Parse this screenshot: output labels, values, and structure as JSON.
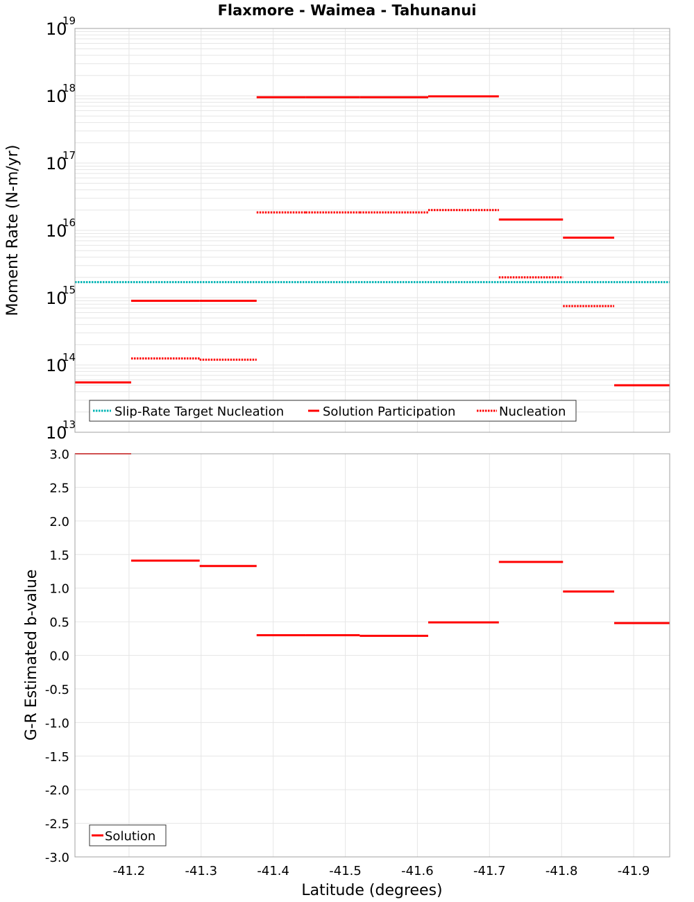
{
  "title": "Flaxmore - Waimea - Tahunanui",
  "colors": {
    "solution": "#ff0000",
    "target": "#00b4b4",
    "grid": "#e6e6e6",
    "frame": "#a0a0a0"
  },
  "chart_data": [
    {
      "type": "line",
      "name": "moment-rate",
      "ylabel": "Moment Rate (N-m/yr)",
      "yscale": "log",
      "ylim_exp": [
        13,
        19
      ],
      "y_tick_exponents": [
        13,
        14,
        15,
        16,
        17,
        18,
        19
      ],
      "y_tick_base": "10",
      "legend": {
        "placement": "bottom-left",
        "entries": [
          {
            "label": "Slip-Rate Target Nucleation",
            "style": "dotted",
            "color": "#00b4b4"
          },
          {
            "label": "Solution Participation",
            "style": "solid",
            "color": "#ff0000"
          },
          {
            "label": "Nucleation",
            "style": "dotted",
            "color": "#ff0000"
          }
        ]
      },
      "target_value": 1700000000000000.0,
      "segments": [
        {
          "x0": -41.125,
          "x1": -41.203,
          "participation": 55000000000000.0,
          "nucleation": null
        },
        {
          "x0": -41.203,
          "x1": -41.298,
          "participation": 900000000000000.0,
          "nucleation": 125000000000000.0
        },
        {
          "x0": -41.298,
          "x1": -41.377,
          "participation": 900000000000000.0,
          "nucleation": 120000000000000.0
        },
        {
          "x0": -41.377,
          "x1": -41.445,
          "participation": 9.5e+17,
          "nucleation": 1.85e+16
        },
        {
          "x0": -41.445,
          "x1": -41.52,
          "participation": 9.5e+17,
          "nucleation": 1.85e+16
        },
        {
          "x0": -41.52,
          "x1": -41.615,
          "participation": 9.5e+17,
          "nucleation": 1.85e+16
        },
        {
          "x0": -41.615,
          "x1": -41.713,
          "participation": 9.8e+17,
          "nucleation": 2e+16
        },
        {
          "x0": -41.713,
          "x1": -41.802,
          "participation": 1.45e+16,
          "nucleation": 2000000000000000.0
        },
        {
          "x0": -41.802,
          "x1": -41.873,
          "participation": 7800000000000000.0,
          "nucleation": 750000000000000.0
        },
        {
          "x0": -41.873,
          "x1": -41.95,
          "participation": 50000000000000.0,
          "nucleation": null
        }
      ]
    },
    {
      "type": "line",
      "name": "b-value",
      "ylabel": "G-R Estimated b-value",
      "xlabel": "Latitude (degrees)",
      "xlim": [
        -41.125,
        -41.95
      ],
      "ylim": [
        -3.0,
        3.0
      ],
      "x_ticks": [
        "-41.2",
        "-41.3",
        "-41.4",
        "-41.5",
        "-41.6",
        "-41.7",
        "-41.8",
        "-41.9"
      ],
      "x_tick_values": [
        -41.2,
        -41.3,
        -41.4,
        -41.5,
        -41.6,
        -41.7,
        -41.8,
        -41.9
      ],
      "y_ticks": [
        "3.0",
        "2.5",
        "2.0",
        "1.5",
        "1.0",
        "0.5",
        "0.0",
        "-0.5",
        "-1.0",
        "-1.5",
        "-2.0",
        "-2.5",
        "-3.0"
      ],
      "y_tick_values": [
        3.0,
        2.5,
        2.0,
        1.5,
        1.0,
        0.5,
        0.0,
        -0.5,
        -1.0,
        -1.5,
        -2.0,
        -2.5,
        -3.0
      ],
      "legend": {
        "placement": "bottom-left",
        "entries": [
          {
            "label": "Solution",
            "style": "solid",
            "color": "#ff0000"
          }
        ]
      },
      "segments": [
        {
          "x0": -41.125,
          "x1": -41.203,
          "b": 3.0
        },
        {
          "x0": -41.203,
          "x1": -41.298,
          "b": 1.41
        },
        {
          "x0": -41.298,
          "x1": -41.377,
          "b": 1.33
        },
        {
          "x0": -41.377,
          "x1": -41.445,
          "b": 0.3
        },
        {
          "x0": -41.445,
          "x1": -41.52,
          "b": 0.3
        },
        {
          "x0": -41.52,
          "x1": -41.615,
          "b": 0.29
        },
        {
          "x0": -41.615,
          "x1": -41.713,
          "b": 0.49
        },
        {
          "x0": -41.713,
          "x1": -41.802,
          "b": 1.39
        },
        {
          "x0": -41.802,
          "x1": -41.873,
          "b": 0.95
        },
        {
          "x0": -41.873,
          "x1": -41.95,
          "b": 0.48
        }
      ]
    }
  ]
}
